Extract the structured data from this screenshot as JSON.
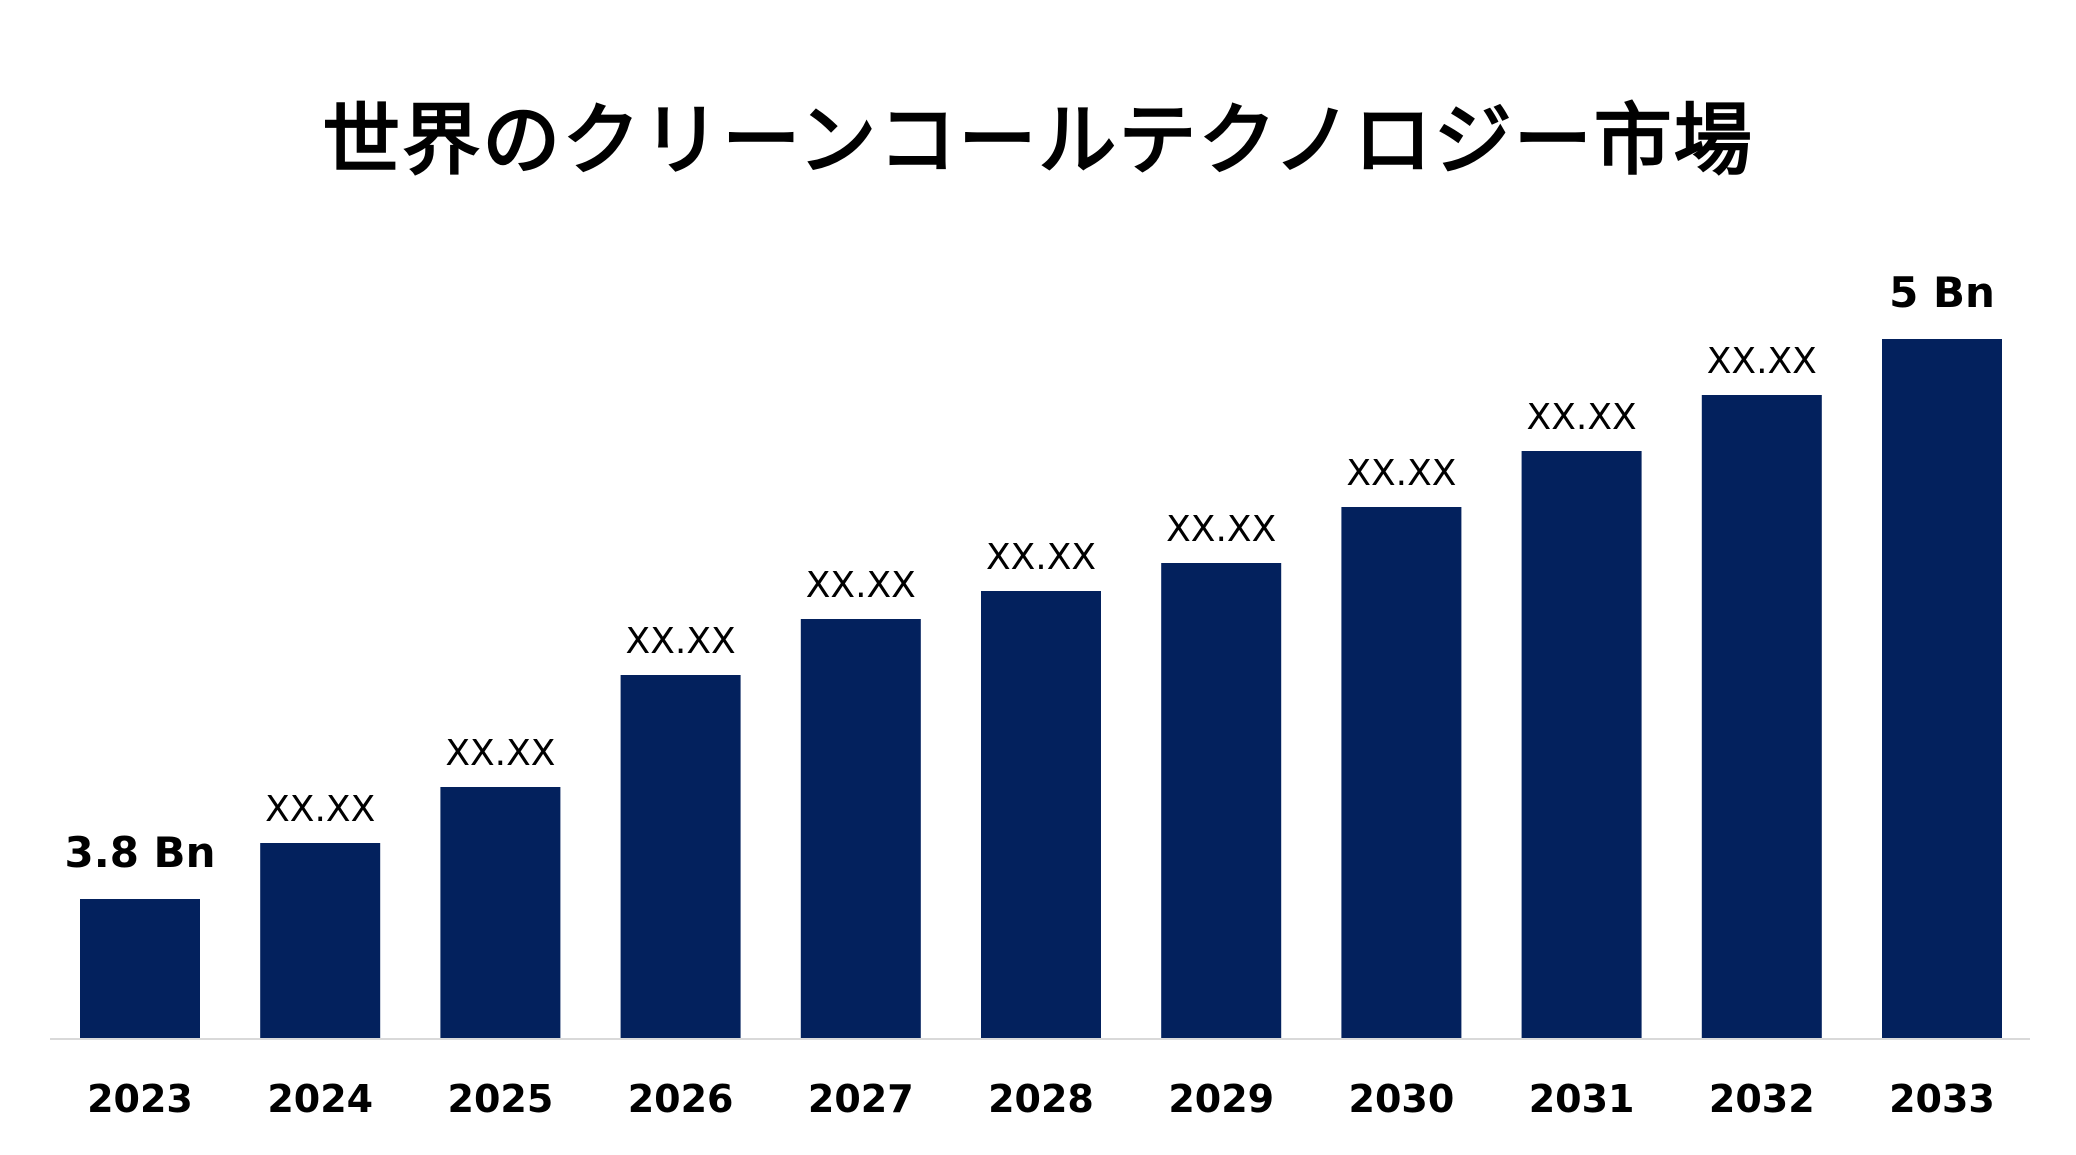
{
  "chart_data": {
    "type": "bar",
    "title": "世界のクリーンコールテクノロジー市場",
    "xlabel": "",
    "ylabel": "",
    "categories": [
      "2023",
      "2024",
      "2025",
      "2026",
      "2027",
      "2028",
      "2029",
      "2030",
      "2031",
      "2032",
      "2033"
    ],
    "values": [
      3.8,
      3.96,
      4.12,
      4.44,
      4.6,
      4.68,
      4.76,
      4.92,
      5.08,
      5.24,
      5.4
    ],
    "data_labels": [
      "3.8 Bn",
      "XX.XX",
      "XX.XX",
      "XX.XX",
      "XX.XX",
      "XX.XX",
      "XX.XX",
      "XX.XX",
      "XX.XX",
      "XX.XX",
      "5 Bn"
    ],
    "ylim": [
      3.4,
      5.4
    ],
    "grid": false,
    "legend": "none",
    "bar_color": "#03215d",
    "axis_color": "#d9d9d9"
  }
}
